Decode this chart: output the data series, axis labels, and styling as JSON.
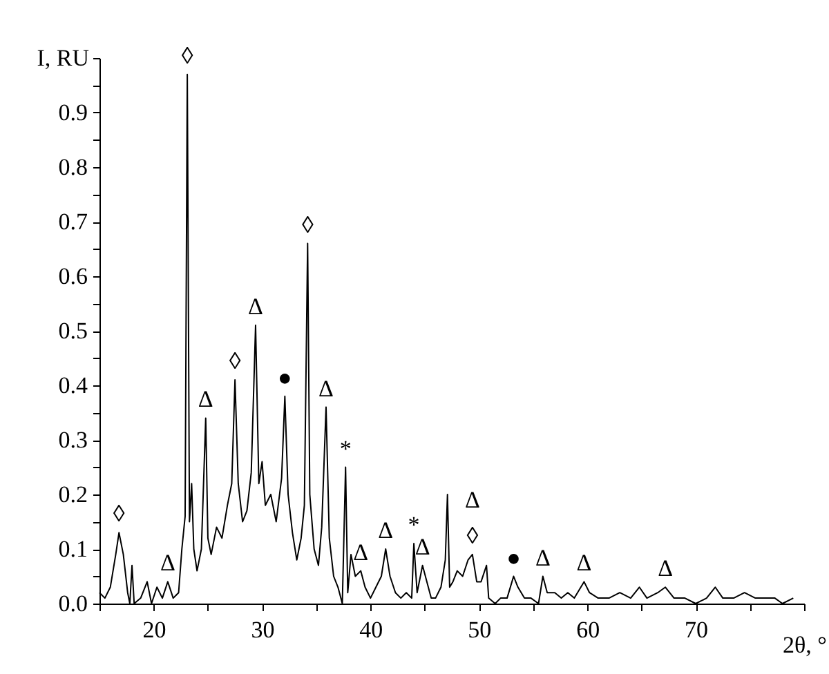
{
  "chart_data": {
    "type": "line",
    "xlabel": "2θ, °",
    "ylabel": "I, RU",
    "xlim": [
      15,
      80
    ],
    "ylim": [
      0,
      1.0
    ],
    "xticks": [
      {
        "value": 15,
        "label": null
      },
      20,
      {
        "value": 25,
        "label": null
      },
      30,
      {
        "value": 35,
        "label": null
      },
      40,
      {
        "value": 45,
        "label": null
      },
      50,
      {
        "value": 55,
        "label": null
      },
      60,
      {
        "value": 65,
        "label": null
      },
      70,
      {
        "value": 75,
        "label": null
      },
      {
        "value": 80,
        "label": null
      }
    ],
    "yticks": [
      {
        "value": 0,
        "label": "0.0"
      },
      {
        "value": 0.05,
        "label": null
      },
      0.1,
      {
        "value": 0.15,
        "label": null
      },
      0.2,
      {
        "value": 0.25,
        "label": null
      },
      0.3,
      {
        "value": 0.35,
        "label": null
      },
      0.4,
      {
        "value": 0.45,
        "label": null
      },
      0.5,
      {
        "value": 0.55,
        "label": null
      },
      0.6,
      {
        "value": 0.65,
        "label": null
      },
      0.7,
      {
        "value": 0.75,
        "label": null
      },
      0.8,
      {
        "value": 0.85,
        "label": null
      },
      0.9,
      {
        "value": 0.95,
        "label": null
      },
      {
        "value": 1.0,
        "label": null
      }
    ],
    "grid": false,
    "legend": false,
    "marker": "none",
    "line_style": "solid",
    "series": [
      {
        "color": "#000000",
        "x": [
          15,
          15.5,
          16,
          16.5,
          16.8,
          17.2,
          17.6,
          17.8,
          18.0,
          18.2,
          18.8,
          19.4,
          19.8,
          20.3,
          20.8,
          21.3,
          21.8,
          22.3,
          22.6,
          22.9,
          23.1,
          23.3,
          23.5,
          23.7,
          24.0,
          24.4,
          24.8,
          25.0,
          25.3,
          25.8,
          26.3,
          26.8,
          27.2,
          27.5,
          27.8,
          28.2,
          28.6,
          29.0,
          29.4,
          29.7,
          30.0,
          30.3,
          30.8,
          31.3,
          31.8,
          32.1,
          32.4,
          32.8,
          33.2,
          33.6,
          33.9,
          34.2,
          34.4,
          34.8,
          35.2,
          35.5,
          35.9,
          36.2,
          36.6,
          37.0,
          37.4,
          37.7,
          37.9,
          38.2,
          38.6,
          39.1,
          39.5,
          40.0,
          40.5,
          41.0,
          41.4,
          41.8,
          42.3,
          42.8,
          43.3,
          43.8,
          44.0,
          44.3,
          44.8,
          45.2,
          45.6,
          46.0,
          46.5,
          46.9,
          47.1,
          47.3,
          47.6,
          48.0,
          48.5,
          49.0,
          49.4,
          49.8,
          50.2,
          50.7,
          50.9,
          51.5,
          52.0,
          52.6,
          53.2,
          53.6,
          54.2,
          54.8,
          55.5,
          55.9,
          56.3,
          57.0,
          57.6,
          58.2,
          58.8,
          59.7,
          60.2,
          61,
          62,
          63,
          64,
          64.8,
          65.5,
          66.5,
          67.2,
          68,
          69,
          70,
          71,
          71.8,
          72.5,
          73.5,
          74.5,
          75.5,
          76.5,
          77.3,
          78,
          79
        ],
        "values": [
          0.02,
          0.01,
          0.03,
          0.09,
          0.13,
          0.09,
          0.02,
          0.0,
          0.07,
          0.0,
          0.01,
          0.04,
          0.0,
          0.03,
          0.01,
          0.04,
          0.01,
          0.02,
          0.1,
          0.16,
          0.97,
          0.15,
          0.22,
          0.1,
          0.06,
          0.1,
          0.34,
          0.12,
          0.09,
          0.14,
          0.12,
          0.18,
          0.22,
          0.41,
          0.22,
          0.15,
          0.17,
          0.24,
          0.51,
          0.22,
          0.26,
          0.18,
          0.2,
          0.15,
          0.23,
          0.38,
          0.2,
          0.13,
          0.08,
          0.12,
          0.18,
          0.66,
          0.2,
          0.1,
          0.07,
          0.14,
          0.36,
          0.12,
          0.05,
          0.03,
          0.0,
          0.25,
          0.02,
          0.09,
          0.05,
          0.06,
          0.03,
          0.01,
          0.03,
          0.05,
          0.1,
          0.05,
          0.02,
          0.01,
          0.02,
          0.01,
          0.11,
          0.02,
          0.07,
          0.04,
          0.01,
          0.01,
          0.03,
          0.08,
          0.2,
          0.03,
          0.04,
          0.06,
          0.05,
          0.08,
          0.09,
          0.04,
          0.04,
          0.07,
          0.01,
          0.0,
          0.01,
          0.01,
          0.05,
          0.03,
          0.01,
          0.01,
          0.0,
          0.05,
          0.02,
          0.02,
          0.01,
          0.02,
          0.01,
          0.04,
          0.02,
          0.01,
          0.01,
          0.02,
          0.01,
          0.03,
          0.01,
          0.02,
          0.03,
          0.01,
          0.01,
          0.0,
          0.01,
          0.03,
          0.01,
          0.01,
          0.02,
          0.01,
          0.01,
          0.01,
          0.0,
          0.01
        ]
      }
    ],
    "annotations": [
      {
        "text": "◊",
        "x": 16.8,
        "y": 0.13
      },
      {
        "text": "Δ",
        "x": 21.3,
        "y": 0.04
      },
      {
        "text": "◊",
        "x": 23.1,
        "y": 0.97
      },
      {
        "text": "Δ",
        "x": 24.8,
        "y": 0.34
      },
      {
        "text": "◊",
        "x": 27.5,
        "y": 0.41
      },
      {
        "text": "Δ",
        "x": 29.4,
        "y": 0.51
      },
      {
        "text": "●",
        "x": 32.1,
        "y": 0.38
      },
      {
        "text": "◊",
        "x": 34.2,
        "y": 0.66
      },
      {
        "text": "Δ",
        "x": 35.9,
        "y": 0.36
      },
      {
        "text": "*",
        "x": 37.7,
        "y": 0.25
      },
      {
        "text": "Δ",
        "x": 39.1,
        "y": 0.06
      },
      {
        "text": "Δ",
        "x": 41.4,
        "y": 0.1
      },
      {
        "text": "*",
        "x": 44.0,
        "y": 0.11
      },
      {
        "text": "Δ",
        "x": 44.8,
        "y": 0.07
      },
      {
        "text": "◊",
        "x": 49.4,
        "y": 0.09
      },
      {
        "text": "Δ",
        "x": 49.4,
        "y": 0.09
      },
      {
        "text": "●",
        "x": 53.2,
        "y": 0.05
      },
      {
        "text": "Δ",
        "x": 55.9,
        "y": 0.05
      },
      {
        "text": "Δ",
        "x": 59.7,
        "y": 0.04
      },
      {
        "text": "Δ",
        "x": 67.2,
        "y": 0.03
      }
    ]
  }
}
